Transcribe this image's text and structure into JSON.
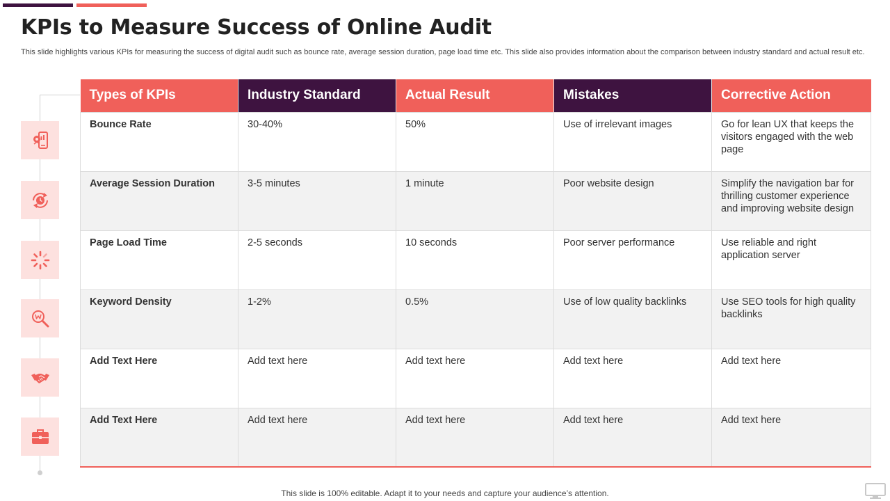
{
  "title": "KPIs to Measure Success of Online Audit",
  "subtitle": "This slide highlights various KPIs for measuring the success of digital audit such as bounce rate, average session duration, page load time etc. This slide also provides information about the comparison between industry standard and actual result etc.",
  "colors": {
    "accent": "#f0605a",
    "dark": "#3e1340",
    "icon_bg": "#fde1df",
    "row_alt": "#f2f2f2"
  },
  "icons": [
    "mobile-analytics-icon",
    "refresh-clock-icon",
    "loading-spinner-icon",
    "keyword-search-icon",
    "handshake-icon",
    "briefcase-icon"
  ],
  "table": {
    "headers": [
      "Types of KPIs",
      "Industry Standard",
      "Actual Result",
      "Mistakes",
      "Corrective Action"
    ],
    "rows": [
      [
        "Bounce Rate",
        "30-40%",
        "50%",
        "Use of irrelevant images",
        "Go for lean UX that keeps the visitors engaged with the web page"
      ],
      [
        "Average Session Duration",
        "3-5 minutes",
        "1 minute",
        "Poor website design",
        "Simplify the navigation bar for thrilling customer experience and improving website design"
      ],
      [
        "Page Load Time",
        "2-5 seconds",
        "10 seconds",
        "Poor server performance",
        "Use reliable and right application server"
      ],
      [
        "Keyword Density",
        "1-2%",
        "0.5%",
        "Use of low quality backlinks",
        "Use SEO tools for high quality backlinks"
      ],
      [
        "Add  Text Here",
        "Add text here",
        "Add text here",
        "Add text here",
        "Add text here"
      ],
      [
        "Add  Text Here",
        "Add text here",
        "Add text here",
        "Add text here",
        "Add text here"
      ]
    ]
  },
  "footer": "This slide is 100% editable. Adapt it to your needs and capture your audience’s attention."
}
